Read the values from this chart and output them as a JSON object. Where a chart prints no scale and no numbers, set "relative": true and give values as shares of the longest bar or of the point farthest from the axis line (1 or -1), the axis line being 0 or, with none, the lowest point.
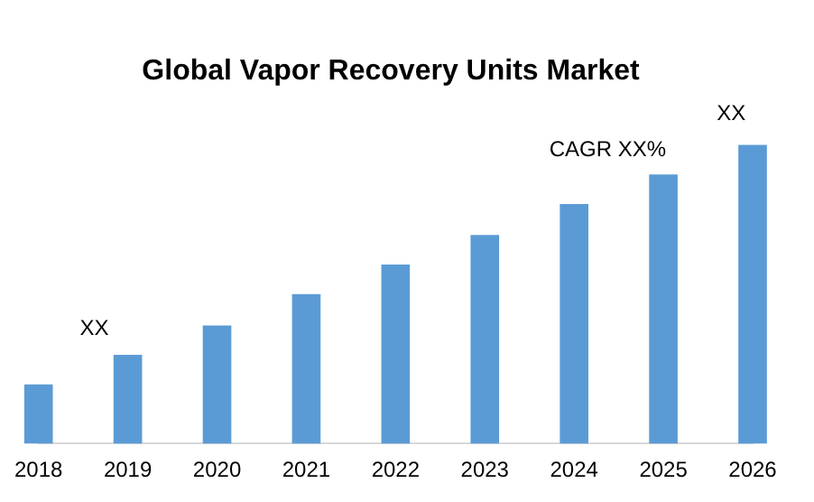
{
  "chart_data": {
    "type": "bar",
    "title": "Global Vapor Recovery Units Market",
    "relative": true,
    "categories": [
      "2018",
      "2019",
      "2020",
      "2021",
      "2022",
      "2023",
      "2024",
      "2025",
      "2026"
    ],
    "values": [
      0.198,
      0.297,
      0.395,
      0.5,
      0.599,
      0.698,
      0.802,
      0.901,
      1
    ],
    "color": "#5b9bd5",
    "grid": false,
    "annotations": [
      "XX",
      "CAGR XX%",
      "XX"
    ]
  }
}
